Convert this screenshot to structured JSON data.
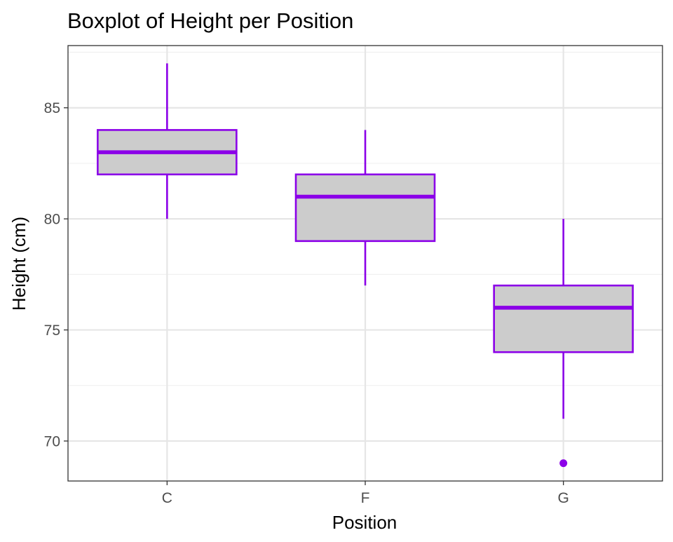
{
  "chart_data": {
    "type": "boxplot",
    "title": "Boxplot of Height per Position",
    "xlabel": "Position",
    "ylabel": "Height (cm)",
    "categories": [
      "C",
      "F",
      "G"
    ],
    "ylim": [
      68.2,
      87.8
    ],
    "y_ticks": [
      70,
      75,
      80,
      85
    ],
    "grid": true,
    "boxes": [
      {
        "category": "C",
        "whisker_low": 80,
        "q1": 82,
        "median": 83,
        "q3": 84,
        "whisker_high": 87,
        "outliers": []
      },
      {
        "category": "F",
        "whisker_low": 77,
        "q1": 79,
        "median": 81,
        "q3": 82,
        "whisker_high": 84,
        "outliers": []
      },
      {
        "category": "G",
        "whisker_low": 71,
        "q1": 74,
        "median": 76,
        "q3": 77,
        "whisker_high": 80,
        "outliers": [
          69
        ]
      }
    ],
    "colors": {
      "box_fill": "#cccccc",
      "box_stroke": "#8b00e8",
      "outlier": "#8b00e8",
      "grid_major": "#e6e6e6",
      "grid_minor": "#f0f0f0",
      "panel_border": "#333333",
      "axis_text": "#4d4d4d",
      "title_text": "#000000"
    }
  }
}
